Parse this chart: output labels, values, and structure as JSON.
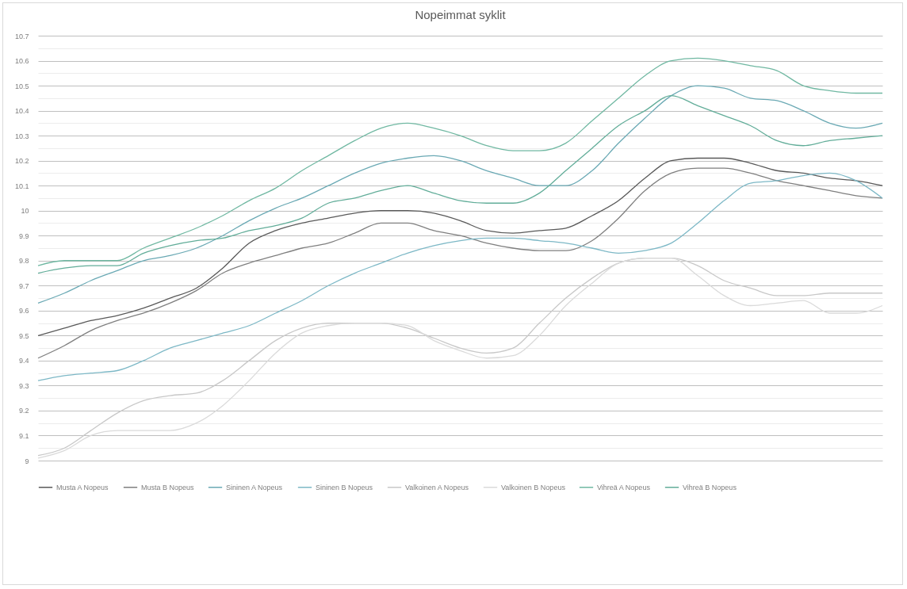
{
  "chart_data": {
    "type": "line",
    "title": "Nopeimmat syklit",
    "categories": [
      null,
      null,
      null,
      null,
      null,
      null,
      null,
      null,
      null,
      null,
      null,
      null,
      null,
      null,
      null,
      null,
      null,
      null,
      null,
      null,
      null,
      null,
      null,
      null,
      null,
      null,
      null,
      null,
      null,
      null,
      null,
      null,
      null
    ],
    "series": [
      {
        "name": "Musta A Nopeus",
        "color": "#595959",
        "values": [
          9.5,
          9.53,
          9.56,
          9.58,
          9.61,
          9.65,
          9.69,
          9.77,
          9.87,
          9.92,
          9.95,
          9.97,
          9.99,
          10.0,
          10.0,
          9.99,
          9.96,
          9.92,
          9.91,
          9.92,
          9.93,
          9.98,
          10.04,
          10.13,
          10.2,
          10.21,
          10.21,
          10.19,
          10.16,
          10.15,
          10.13,
          10.12,
          10.1
        ]
      },
      {
        "name": "Musta B Nopeus",
        "color": "#7f7f7f",
        "values": [
          9.41,
          9.46,
          9.52,
          9.56,
          9.59,
          9.63,
          9.68,
          9.75,
          9.79,
          9.82,
          9.85,
          9.87,
          9.91,
          9.95,
          9.95,
          9.92,
          9.9,
          9.87,
          9.85,
          9.84,
          9.84,
          9.88,
          9.97,
          10.08,
          10.15,
          10.17,
          10.17,
          10.15,
          10.12,
          10.1,
          10.08,
          10.06,
          10.05
        ]
      },
      {
        "name": "Sininen A Nopeus",
        "color": "#6aa9b4",
        "values": [
          9.63,
          9.67,
          9.72,
          9.76,
          9.8,
          9.82,
          9.85,
          9.9,
          9.96,
          10.01,
          10.05,
          10.1,
          10.15,
          10.19,
          10.21,
          10.22,
          10.2,
          10.16,
          10.13,
          10.1,
          10.1,
          10.16,
          10.27,
          10.37,
          10.46,
          10.5,
          10.49,
          10.45,
          10.44,
          10.4,
          10.35,
          10.33,
          10.35
        ]
      },
      {
        "name": "Sininen B Nopeus",
        "color": "#7db8c6",
        "values": [
          9.32,
          9.34,
          9.35,
          9.36,
          9.4,
          9.45,
          9.48,
          9.51,
          9.54,
          9.59,
          9.64,
          9.7,
          9.75,
          9.79,
          9.83,
          9.86,
          9.88,
          9.89,
          9.89,
          9.88,
          9.87,
          9.85,
          9.83,
          9.84,
          9.87,
          9.95,
          10.04,
          10.11,
          10.12,
          10.14,
          10.15,
          10.12,
          10.05
        ]
      },
      {
        "name": "Valkoinen A Nopeus",
        "color": "#c8c8c8",
        "values": [
          9.02,
          9.05,
          9.12,
          9.19,
          9.24,
          9.26,
          9.27,
          9.32,
          9.4,
          9.48,
          9.53,
          9.55,
          9.55,
          9.55,
          9.53,
          9.49,
          9.45,
          9.43,
          9.45,
          9.55,
          9.65,
          9.73,
          9.79,
          9.81,
          9.81,
          9.78,
          9.72,
          9.69,
          9.66,
          9.66,
          9.67,
          9.67,
          9.67
        ]
      },
      {
        "name": "Valkoinen B Nopeus",
        "color": "#dadada",
        "values": [
          9.01,
          9.04,
          9.1,
          9.12,
          9.12,
          9.12,
          9.15,
          9.22,
          9.32,
          9.43,
          9.51,
          9.54,
          9.55,
          9.55,
          9.54,
          9.48,
          9.44,
          9.41,
          9.42,
          9.5,
          9.62,
          9.71,
          9.79,
          9.81,
          9.81,
          9.74,
          9.66,
          9.62,
          9.63,
          9.64,
          9.59,
          9.59,
          9.62
        ]
      },
      {
        "name": "Vihreä A Nopeus",
        "color": "#70b8a2",
        "values": [
          9.78,
          9.8,
          9.8,
          9.8,
          9.85,
          9.89,
          9.93,
          9.98,
          10.04,
          10.09,
          10.16,
          10.22,
          10.28,
          10.33,
          10.35,
          10.33,
          10.3,
          10.26,
          10.24,
          10.24,
          10.27,
          10.36,
          10.45,
          10.54,
          10.6,
          10.61,
          10.6,
          10.58,
          10.56,
          10.5,
          10.48,
          10.47,
          10.47
        ]
      },
      {
        "name": "Vihreä B Nopeus",
        "color": "#62ad99",
        "values": [
          9.75,
          9.77,
          9.78,
          9.78,
          9.83,
          9.86,
          9.88,
          9.89,
          9.92,
          9.94,
          9.97,
          10.03,
          10.05,
          10.08,
          10.1,
          10.07,
          10.04,
          10.03,
          10.03,
          10.07,
          10.16,
          10.25,
          10.34,
          10.4,
          10.46,
          10.42,
          10.38,
          10.34,
          10.28,
          10.26,
          10.28,
          10.29,
          10.3
        ]
      }
    ],
    "ylim": [
      9,
      10.7
    ],
    "yticks": [
      9,
      {
        "value": 9.05,
        "label": null
      },
      9.1,
      {
        "value": 9.15,
        "label": null
      },
      9.2,
      {
        "value": 9.25,
        "label": null
      },
      9.3,
      {
        "value": 9.35,
        "label": null
      },
      9.4,
      {
        "value": 9.45,
        "label": null
      },
      9.5,
      {
        "value": 9.55,
        "label": null
      },
      9.6,
      {
        "value": 9.65,
        "label": null
      },
      9.7,
      {
        "value": 9.75,
        "label": null
      },
      9.8,
      {
        "value": 9.85,
        "label": null
      },
      9.9,
      {
        "value": 9.95,
        "label": null
      },
      10,
      {
        "value": 10.05,
        "label": null
      },
      10.1,
      {
        "value": 10.15,
        "label": null
      },
      10.2,
      {
        "value": 10.25,
        "label": null
      },
      10.3,
      {
        "value": 10.35,
        "label": null
      },
      10.4,
      {
        "value": 10.45,
        "label": null
      },
      10.5,
      {
        "value": 10.55,
        "label": null
      },
      10.6,
      {
        "value": 10.65,
        "label": null
      },
      10.7
    ],
    "tick_labels": "y",
    "grid": "y",
    "legend": "bottom",
    "marker": "none",
    "line_style": "solid"
  }
}
